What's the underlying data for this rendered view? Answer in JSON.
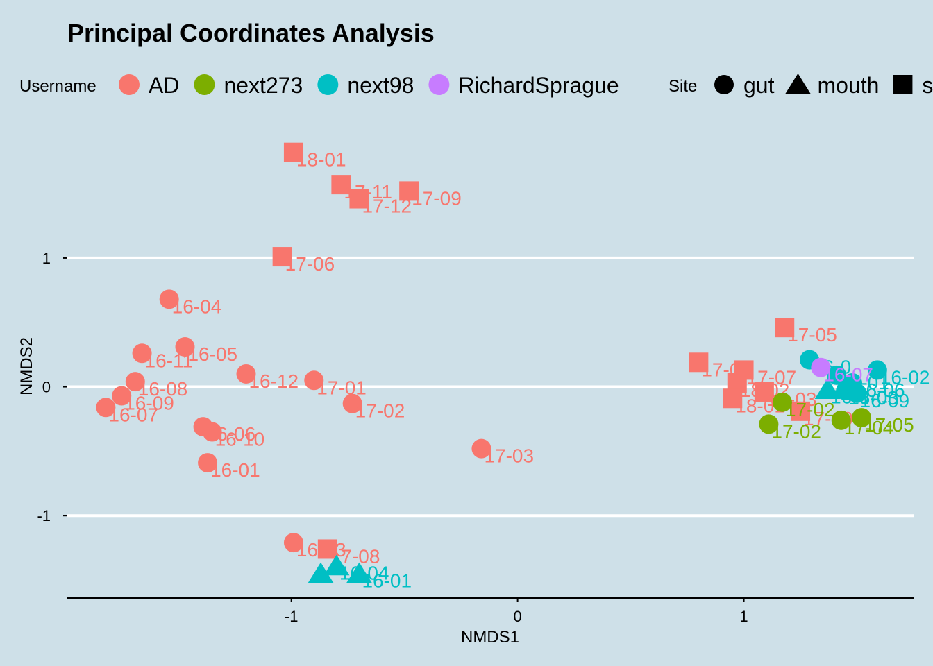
{
  "chart_data": {
    "type": "scatter",
    "title": "Principal Coordinates Analysis",
    "xlabel": "NMDS1",
    "ylabel": "NMDS2",
    "xlim": [
      -1.99,
      1.75
    ],
    "ylim": [
      -1.64,
      1.98
    ],
    "x_ticks": [
      {
        "value": -1,
        "label": "-1"
      },
      {
        "value": 0,
        "label": "0"
      },
      {
        "value": 1,
        "label": "1"
      }
    ],
    "y_ticks": [
      {
        "value": -1,
        "label": "-1"
      },
      {
        "value": 0,
        "label": "0"
      },
      {
        "value": 1,
        "label": "1"
      }
    ],
    "grid": "horizontal-major",
    "legend_position": "top",
    "colors": {
      "AD": "#f8766d",
      "next273": "#7cae00",
      "next98": "#00bfc4",
      "RichardSprague": "#c77cff",
      "background": "#cee0e8",
      "grid": "#ffffff"
    },
    "legend": {
      "username_title": "Username",
      "users": [
        {
          "name": "AD",
          "color": "#f8766d"
        },
        {
          "name": "next273",
          "color": "#7cae00"
        },
        {
          "name": "next98",
          "color": "#00bfc4"
        },
        {
          "name": "RichardSprague",
          "color": "#c77cff"
        }
      ],
      "site_title": "Site",
      "sites": [
        {
          "name": "gut",
          "shape": "circle"
        },
        {
          "name": "mouth",
          "shape": "triangle"
        },
        {
          "name": "s",
          "shape": "square"
        }
      ]
    },
    "points": [
      {
        "user": "AD",
        "shape": "square",
        "x": -0.99,
        "y": 1.82,
        "label": "18-01"
      },
      {
        "user": "AD",
        "shape": "square",
        "x": -0.78,
        "y": 1.57,
        "label": "17-11"
      },
      {
        "user": "AD",
        "shape": "square",
        "x": -0.7,
        "y": 1.46,
        "label": "17-12"
      },
      {
        "user": "AD",
        "shape": "square",
        "x": -0.48,
        "y": 1.52,
        "label": "17-09"
      },
      {
        "user": "AD",
        "shape": "square",
        "x": -1.04,
        "y": 1.01,
        "label": "17-06"
      },
      {
        "user": "AD",
        "shape": "circle",
        "x": -1.54,
        "y": 0.68,
        "label": "16-04"
      },
      {
        "user": "AD",
        "shape": "circle",
        "x": -1.47,
        "y": 0.31,
        "label": "16-05"
      },
      {
        "user": "AD",
        "shape": "circle",
        "x": -1.66,
        "y": 0.26,
        "label": "16-11"
      },
      {
        "user": "AD",
        "shape": "circle",
        "x": -1.69,
        "y": 0.04,
        "label": "16-08"
      },
      {
        "user": "AD",
        "shape": "circle",
        "x": -1.75,
        "y": -0.07,
        "label": "16-09"
      },
      {
        "user": "AD",
        "shape": "circle",
        "x": -1.82,
        "y": -0.16,
        "label": "16-07"
      },
      {
        "user": "AD",
        "shape": "circle",
        "x": -1.2,
        "y": 0.1,
        "label": "16-12"
      },
      {
        "user": "AD",
        "shape": "circle",
        "x": -0.9,
        "y": 0.05,
        "label": "17-01"
      },
      {
        "user": "AD",
        "shape": "circle",
        "x": -0.73,
        "y": -0.13,
        "label": "17-02"
      },
      {
        "user": "AD",
        "shape": "circle",
        "x": -1.39,
        "y": -0.31,
        "label": "16-06"
      },
      {
        "user": "AD",
        "shape": "circle",
        "x": -1.35,
        "y": -0.35,
        "label": "16-10"
      },
      {
        "user": "AD",
        "shape": "circle",
        "x": -1.37,
        "y": -0.59,
        "label": "16-01"
      },
      {
        "user": "AD",
        "shape": "circle",
        "x": -0.16,
        "y": -0.48,
        "label": "17-03"
      },
      {
        "user": "AD",
        "shape": "circle",
        "x": -0.99,
        "y": -1.21,
        "label": "16-03"
      },
      {
        "user": "AD",
        "shape": "square",
        "x": -0.84,
        "y": -1.26,
        "label": "17-08"
      },
      {
        "user": "next98",
        "shape": "triangle",
        "x": -0.87,
        "y": -1.45,
        "label": ""
      },
      {
        "user": "next98",
        "shape": "triangle",
        "x": -0.8,
        "y": -1.39,
        "label": "16-04"
      },
      {
        "user": "next98",
        "shape": "triangle",
        "x": -0.7,
        "y": -1.45,
        "label": "16-01"
      },
      {
        "user": "AD",
        "shape": "square",
        "x": 1.18,
        "y": 0.46,
        "label": "17-05"
      },
      {
        "user": "AD",
        "shape": "square",
        "x": 0.8,
        "y": 0.19,
        "label": "17-04"
      },
      {
        "user": "AD",
        "shape": "square",
        "x": 1.0,
        "y": 0.13,
        "label": "17-07"
      },
      {
        "user": "AD",
        "shape": "square",
        "x": 0.97,
        "y": 0.03,
        "label": "18-02"
      },
      {
        "user": "AD",
        "shape": "square",
        "x": 1.09,
        "y": -0.04,
        "label": "18-03"
      },
      {
        "user": "AD",
        "shape": "square",
        "x": 0.95,
        "y": -0.09,
        "label": "18-01"
      },
      {
        "user": "AD",
        "shape": "square",
        "x": 1.25,
        "y": -0.19,
        "label": "17-10"
      },
      {
        "user": "next273",
        "shape": "circle",
        "x": 1.17,
        "y": -0.12,
        "label": "17-02"
      },
      {
        "user": "next273",
        "shape": "circle",
        "x": 1.11,
        "y": -0.29,
        "label": "17-02"
      },
      {
        "user": "next273",
        "shape": "circle",
        "x": 1.43,
        "y": -0.26,
        "label": "17-04"
      },
      {
        "user": "next273",
        "shape": "circle",
        "x": 1.52,
        "y": -0.24,
        "label": "17-05"
      },
      {
        "user": "next98",
        "shape": "circle",
        "x": 1.29,
        "y": 0.21,
        "label": "16-0"
      },
      {
        "user": "next98",
        "shape": "circle",
        "x": 1.59,
        "y": 0.13,
        "label": "16-02"
      },
      {
        "user": "next98",
        "shape": "circle",
        "x": 1.41,
        "y": 0.09,
        "label": "16-01"
      },
      {
        "user": "next98",
        "shape": "circle",
        "x": 1.48,
        "y": 0.03,
        "label": "16-06"
      },
      {
        "user": "next98",
        "shape": "circle",
        "x": 1.45,
        "y": -0.03,
        "label": "16-03"
      },
      {
        "user": "next98",
        "shape": "circle",
        "x": 1.5,
        "y": -0.05,
        "label": "16-09"
      },
      {
        "user": "next98",
        "shape": "triangle",
        "x": 1.37,
        "y": -0.02,
        "label": "16-0"
      },
      {
        "user": "RichardSprague",
        "shape": "circle",
        "x": 1.34,
        "y": 0.15,
        "label": "16-07"
      }
    ]
  }
}
